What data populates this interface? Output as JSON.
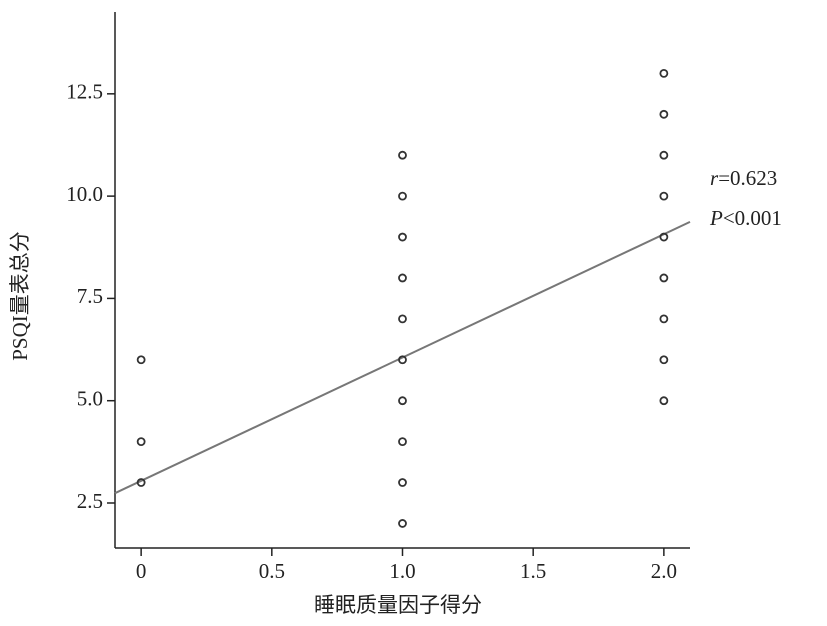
{
  "chart_data": {
    "type": "scatter",
    "x_label": "睡眠质量因子得分",
    "y_label": "PSQI量表总分",
    "x": [
      0,
      0,
      0,
      1,
      1,
      1,
      1,
      1,
      1,
      1,
      1,
      1,
      1,
      2,
      2,
      2,
      2,
      2,
      2,
      2,
      2,
      2
    ],
    "values": [
      6,
      4,
      3,
      11,
      10,
      9,
      8,
      7,
      6,
      5,
      4,
      3,
      2,
      13,
      12,
      11,
      10,
      9,
      8,
      7,
      6,
      5
    ],
    "color": "#333333",
    "fit_line": {
      "x": [
        -0.1,
        2.1
      ],
      "y": [
        2.74,
        9.37
      ],
      "color": "#777777"
    },
    "xlim": [
      -0.1,
      2.1
    ],
    "xticks": [
      0,
      0.5,
      {
        "value": 1,
        "label": "1.0"
      },
      1.5,
      {
        "value": 2,
        "label": "2.0"
      }
    ],
    "ylim": [
      1.4,
      14.5
    ],
    "yticks": [
      {
        "value": 2.5,
        "label": "2.5"
      },
      {
        "value": 5,
        "label": "5.0"
      },
      7.5,
      {
        "value": 10,
        "label": "10.0"
      },
      12.5
    ],
    "annotations": [
      {
        "symbol": "r",
        "text": "=0.623"
      },
      {
        "symbol": "P",
        "text": "<0.001"
      }
    ]
  }
}
